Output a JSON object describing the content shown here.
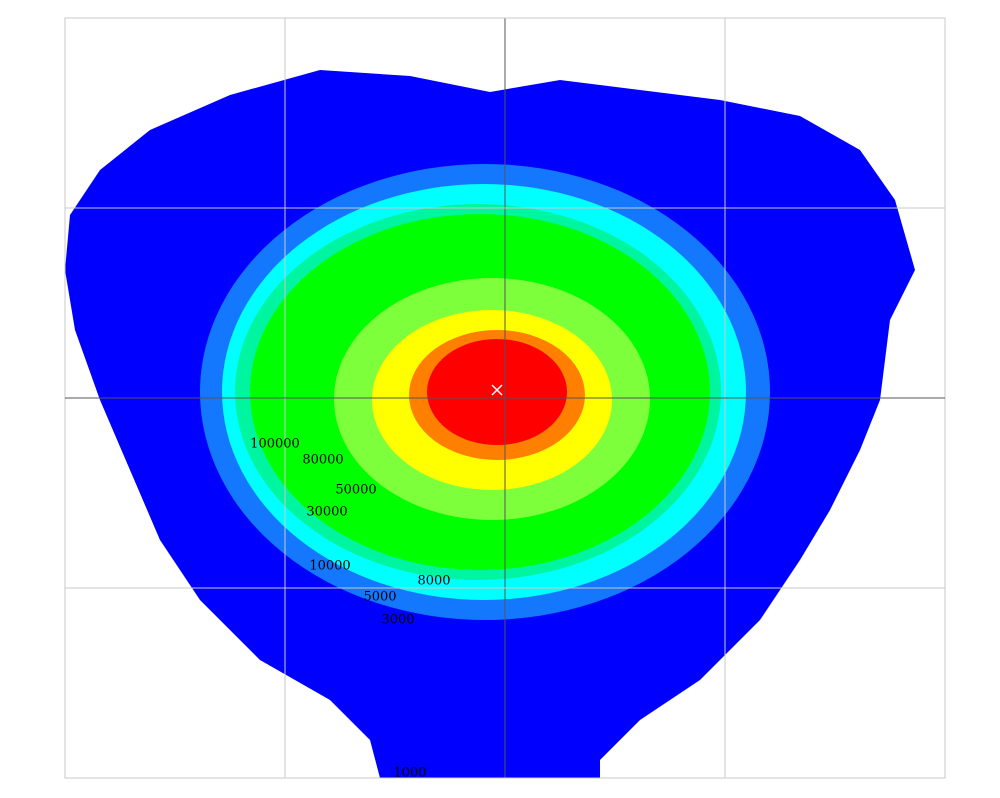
{
  "chart_data": {
    "type": "contour",
    "levels": [
      {
        "value": 1000,
        "color": "#0000ff"
      },
      {
        "value": 3000,
        "color": "#1478ff"
      },
      {
        "value": 5000,
        "color": "#00ffff"
      },
      {
        "value": 8000,
        "color": "#00f5a0"
      },
      {
        "value": 10000,
        "color": "#00ff00"
      },
      {
        "value": 30000,
        "color": "#7dff3c"
      },
      {
        "value": 50000,
        "color": "#ffff00"
      },
      {
        "value": 80000,
        "color": "#ff8000"
      },
      {
        "value": 100000,
        "color": "#ff0000"
      }
    ],
    "grid": true
  }
}
